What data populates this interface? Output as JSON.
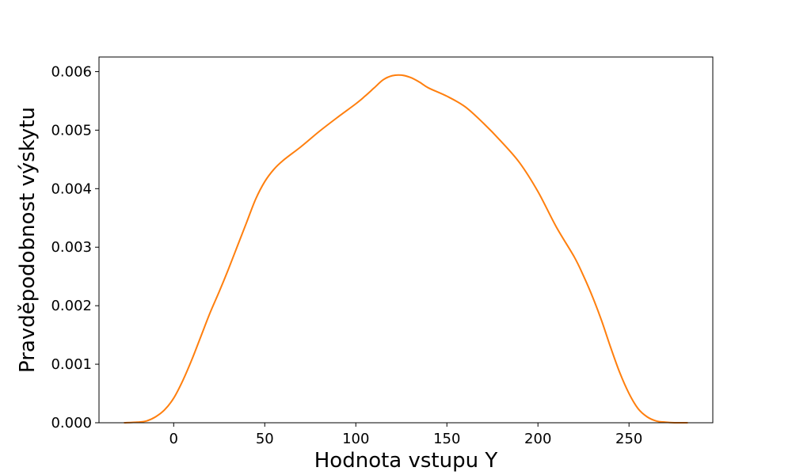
{
  "chart_data": {
    "type": "line",
    "xlabel": "Hodnota vstupu Y",
    "ylabel": "Pravděpodobnost výskytu",
    "xlim": [
      -41,
      296
    ],
    "ylim": [
      0,
      0.00625
    ],
    "x_ticks": [
      0,
      50,
      100,
      150,
      200,
      250
    ],
    "x_tick_labels": [
      "0",
      "50",
      "100",
      "150",
      "200",
      "250"
    ],
    "y_ticks": [
      0,
      0.001,
      0.002,
      0.003,
      0.004,
      0.005,
      0.006
    ],
    "y_tick_labels": [
      "0.000",
      "0.001",
      "0.002",
      "0.003",
      "0.004",
      "0.005",
      "0.006"
    ],
    "grid": false,
    "series": [
      {
        "color": "#ff7f0e",
        "x": [
          -27,
          -20,
          -15,
          -10,
          -5,
          0,
          5,
          10,
          15,
          20,
          25,
          30,
          35,
          40,
          45,
          50,
          55,
          60,
          70,
          80,
          90,
          100,
          105,
          110,
          115,
          120,
          125,
          130,
          135,
          140,
          150,
          160,
          170,
          180,
          190,
          200,
          210,
          220,
          225,
          230,
          235,
          240,
          245,
          250,
          255,
          260,
          265,
          270,
          275,
          282
        ],
        "y": [
          0.0,
          1e-05,
          3e-05,
          0.0001,
          0.00022,
          0.00042,
          0.00072,
          0.00108,
          0.00148,
          0.00188,
          0.00224,
          0.00262,
          0.00302,
          0.00342,
          0.00382,
          0.00412,
          0.00433,
          0.00448,
          0.00472,
          0.00498,
          0.00522,
          0.00545,
          0.00558,
          0.00572,
          0.00586,
          0.00593,
          0.00594,
          0.0059,
          0.00582,
          0.00572,
          0.00558,
          0.0054,
          0.00512,
          0.0048,
          0.00444,
          0.00395,
          0.00335,
          0.00283,
          0.00251,
          0.00215,
          0.00174,
          0.00128,
          0.00085,
          0.0005,
          0.00024,
          0.0001,
          3e-05,
          1e-05,
          0.0,
          0.0
        ]
      }
    ]
  }
}
